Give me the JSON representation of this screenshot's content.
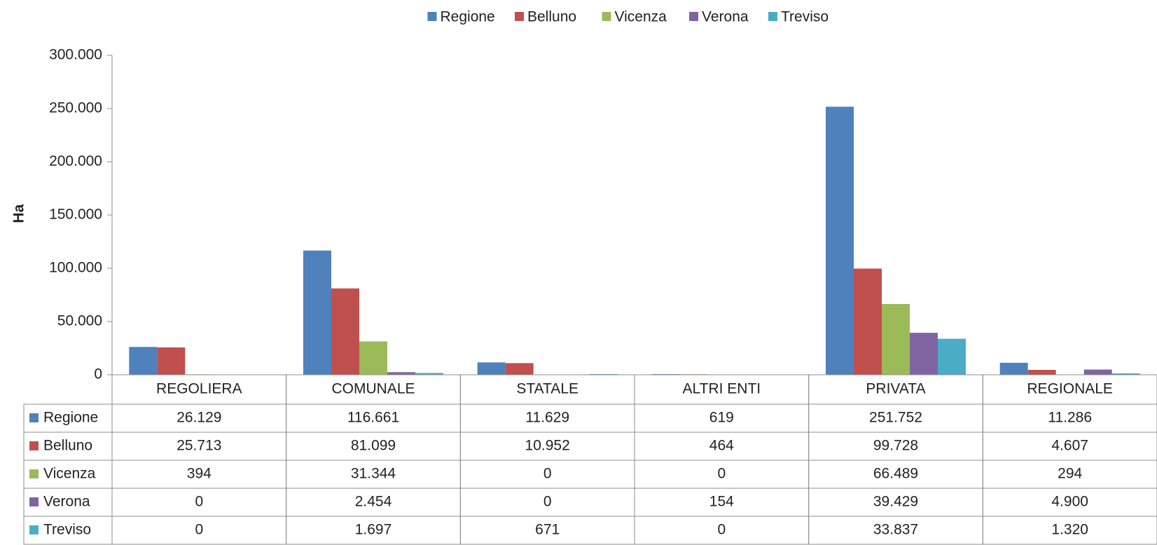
{
  "chart_data": {
    "type": "bar",
    "y_label": "Ha",
    "categories": [
      "REGOLIERA",
      "COMUNALE",
      "STATALE",
      "ALTRI ENTI",
      "PRIVATA",
      "REGIONALE"
    ],
    "series": [
      {
        "name": "Regione",
        "color": "#4f81bd",
        "values": [
          26129,
          116661,
          11629,
          619,
          251752,
          11286
        ],
        "value_labels": [
          "26.129",
          "116.661",
          "11.629",
          "619",
          "251.752",
          "11.286"
        ]
      },
      {
        "name": "Belluno",
        "color": "#c0504d",
        "values": [
          25713,
          81099,
          10952,
          464,
          99728,
          4607
        ],
        "value_labels": [
          "25.713",
          "81.099",
          "10.952",
          "464",
          "99.728",
          "4.607"
        ]
      },
      {
        "name": "Vicenza",
        "color": "#9bbb59",
        "values": [
          394,
          31344,
          0,
          0,
          66489,
          294
        ],
        "value_labels": [
          "394",
          "31.344",
          "0",
          "0",
          "66.489",
          "294"
        ]
      },
      {
        "name": "Verona",
        "color": "#8064a2",
        "values": [
          0,
          2454,
          0,
          154,
          39429,
          4900
        ],
        "value_labels": [
          "0",
          "2.454",
          "0",
          "154",
          "39.429",
          "4.900"
        ]
      },
      {
        "name": "Treviso",
        "color": "#4bacc6",
        "values": [
          0,
          1697,
          671,
          0,
          33837,
          1320
        ],
        "value_labels": [
          "0",
          "1.697",
          "671",
          "0",
          "33.837",
          "1.320"
        ]
      }
    ],
    "ylim": [
      0,
      300000
    ],
    "yticks": [
      0,
      {
        "value": 50000,
        "label": "50.000"
      },
      {
        "value": 100000,
        "label": "100.000"
      },
      {
        "value": 150000,
        "label": "150.000"
      },
      {
        "value": 200000,
        "label": "200.000"
      },
      {
        "value": 250000,
        "label": "250.000"
      },
      {
        "value": 300000,
        "label": "300.000"
      }
    ],
    "grid": false,
    "legend": "top"
  }
}
